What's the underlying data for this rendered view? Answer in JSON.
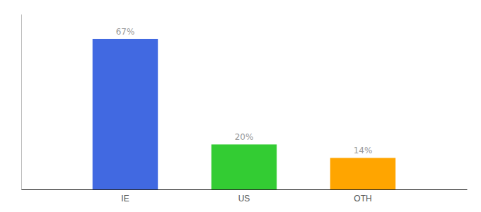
{
  "chart_data": {
    "type": "bar",
    "categories": [
      "IE",
      "US",
      "OTH"
    ],
    "values": [
      67,
      20,
      14
    ],
    "value_labels": [
      "67%",
      "20%",
      "14%"
    ],
    "colors": [
      "#4169E1",
      "#33CC33",
      "#FFA500"
    ],
    "ylim": [
      0,
      78
    ],
    "data_labels": true,
    "tick_labels": "x",
    "grid": false
  }
}
